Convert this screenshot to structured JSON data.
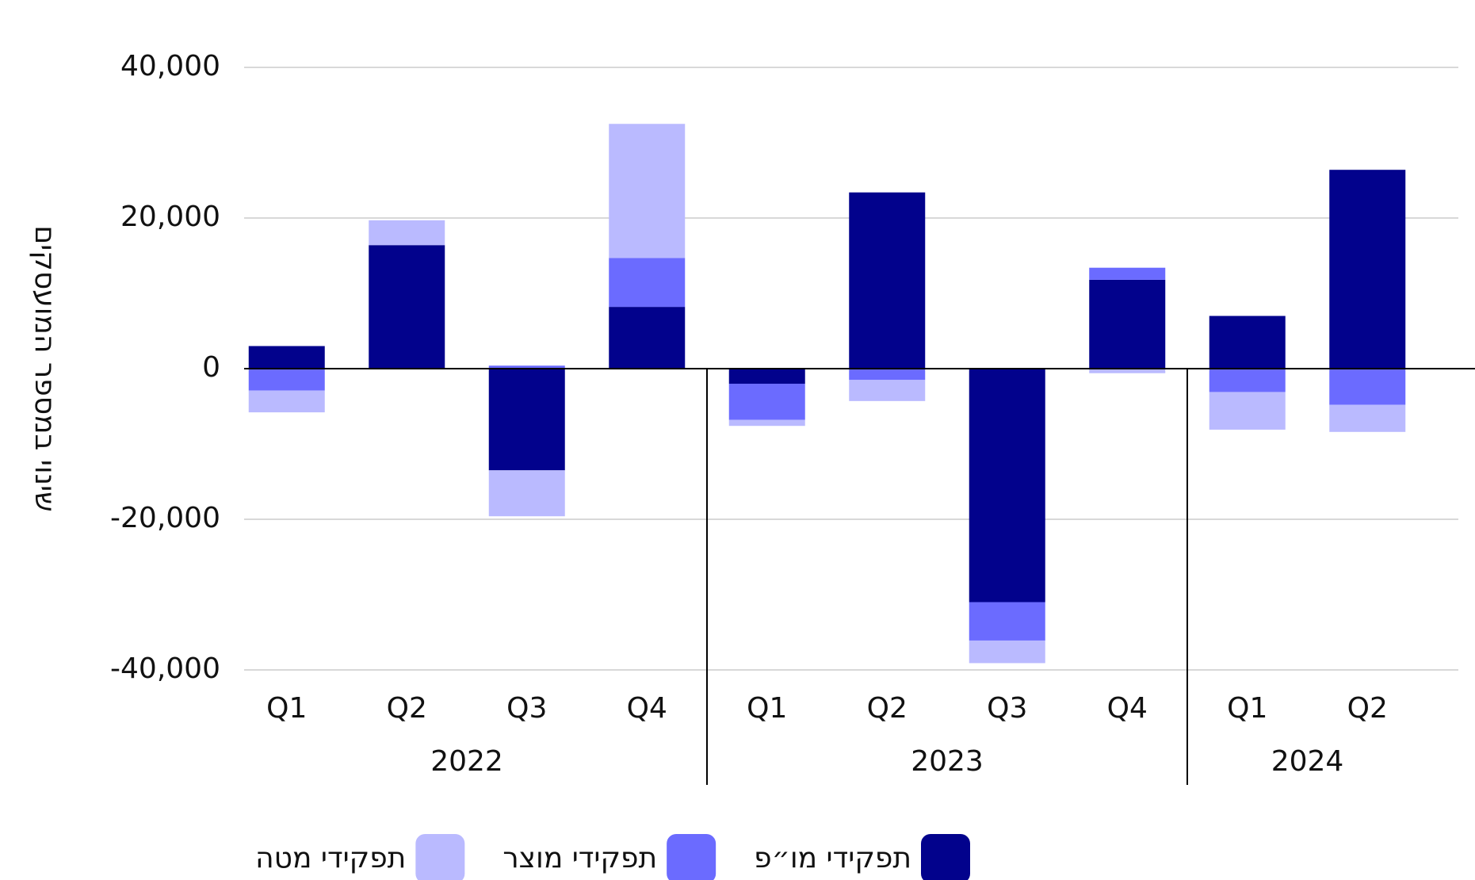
{
  "chart_data": {
    "type": "bar",
    "stacked": true,
    "y_label": "שינוי במספר המועסקים",
    "groups": [
      {
        "label": "2022",
        "categories": [
          "Q1",
          "Q2",
          "Q3",
          "Q4"
        ]
      },
      {
        "label": "2023",
        "categories": [
          "Q1",
          "Q2",
          "Q3",
          "Q4"
        ]
      },
      {
        "label": "2024",
        "categories": [
          "Q1",
          "Q2"
        ]
      }
    ],
    "series": [
      {
        "name": "תפקידי מו״פ",
        "color": "#02028c",
        "values": [
          3000,
          16400,
          -13500,
          8200,
          -2000,
          23400,
          -31000,
          11800,
          7000,
          26400
        ]
      },
      {
        "name": "תפקידי מוצר",
        "color": "#6b6bff",
        "values": [
          -2900,
          0,
          400,
          6500,
          -4800,
          -1500,
          -5100,
          1600,
          -3100,
          -4800
        ]
      },
      {
        "name": "תפקידי מטה",
        "color": "#babaff",
        "values": [
          -2900,
          3300,
          -6100,
          17800,
          -800,
          -2800,
          -3000,
          -600,
          -5000,
          -3600
        ]
      }
    ],
    "ylim": [
      -40000,
      40000
    ],
    "yticks": [
      {
        "value": -40000,
        "label": "-40,000"
      },
      {
        "value": -20000,
        "label": "-20,000"
      },
      0,
      {
        "value": 20000,
        "label": "20,000"
      },
      {
        "value": 40000,
        "label": "40,000"
      }
    ],
    "grid": true
  }
}
